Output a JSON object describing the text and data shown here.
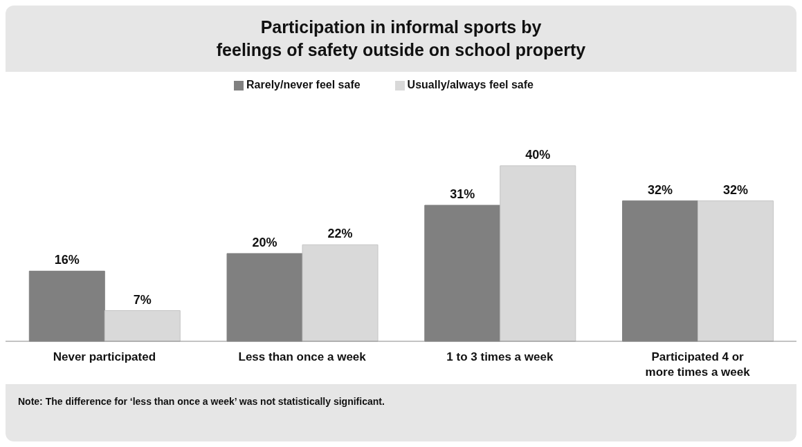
{
  "chart_data": {
    "type": "bar",
    "title": "Participation in informal sports by\nfeelings of safety outside on school property",
    "categories": [
      "Never participated",
      "Less than once a week",
      "1 to 3 times a week",
      "Participated 4 or more times a week"
    ],
    "series": [
      {
        "name": "Rarely/never feel safe",
        "color": "#808080",
        "values": [
          16,
          20,
          31,
          32
        ],
        "value_labels": [
          "16%",
          "20%",
          "31%",
          "32%"
        ]
      },
      {
        "name": "Usually/always feel safe",
        "color": "#d9d9d9",
        "values": [
          7,
          22,
          40,
          32
        ],
        "value_labels": [
          "7%",
          "22%",
          "40%",
          "32%"
        ]
      }
    ],
    "legend": "top",
    "annotations": [
      "Note: The difference for ‘less than once a week’ was not statistically significant."
    ]
  }
}
